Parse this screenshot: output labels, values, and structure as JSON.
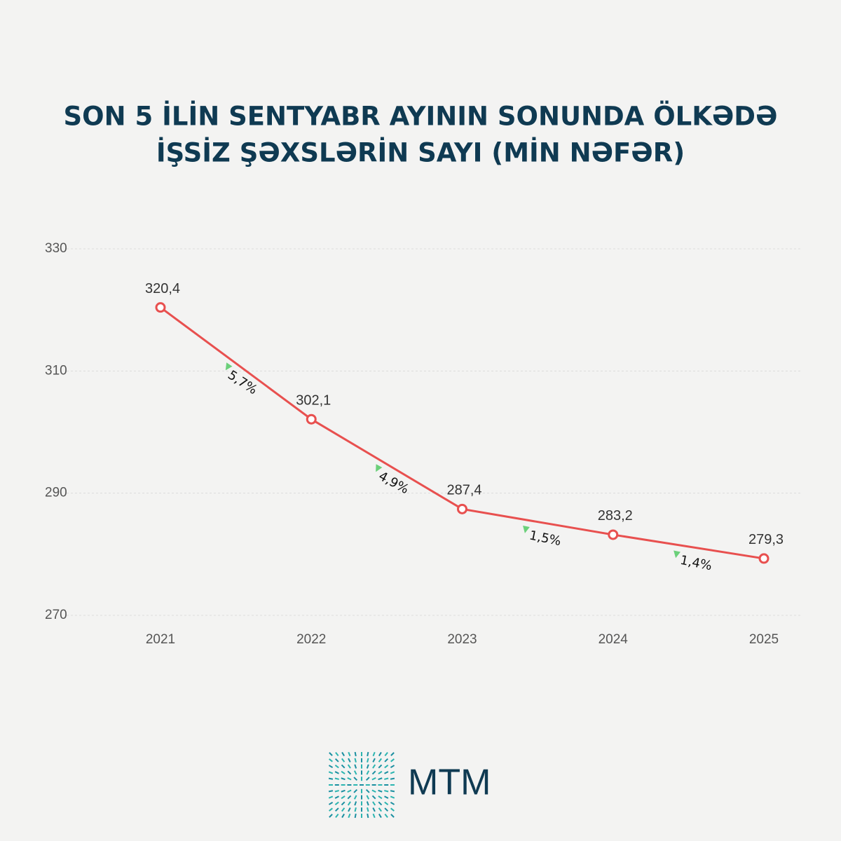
{
  "chart_data": {
    "type": "line",
    "title": [
      "SON 5 İLİN SENTYABR AYININ SONUNDA ÖLKƏDƏ",
      "İŞSİZ ŞƏXSLƏRİN SAYI (MİN NƏFƏR)"
    ],
    "categories": [
      "2021",
      "2022",
      "2023",
      "2024",
      "2025"
    ],
    "values": [
      320.4,
      302.1,
      287.4,
      283.2,
      279.3
    ],
    "value_labels": [
      "320,4",
      "302,1",
      "287,4",
      "283,2",
      "279,3"
    ],
    "change_labels": [
      "5,7%",
      "4,9%",
      "1,5%",
      "1,4%"
    ],
    "color": "#e8504f",
    "ylim": [
      270,
      330
    ],
    "yticks": [
      270,
      290,
      310,
      330
    ],
    "grid": true
  },
  "logo_text": "MTM"
}
